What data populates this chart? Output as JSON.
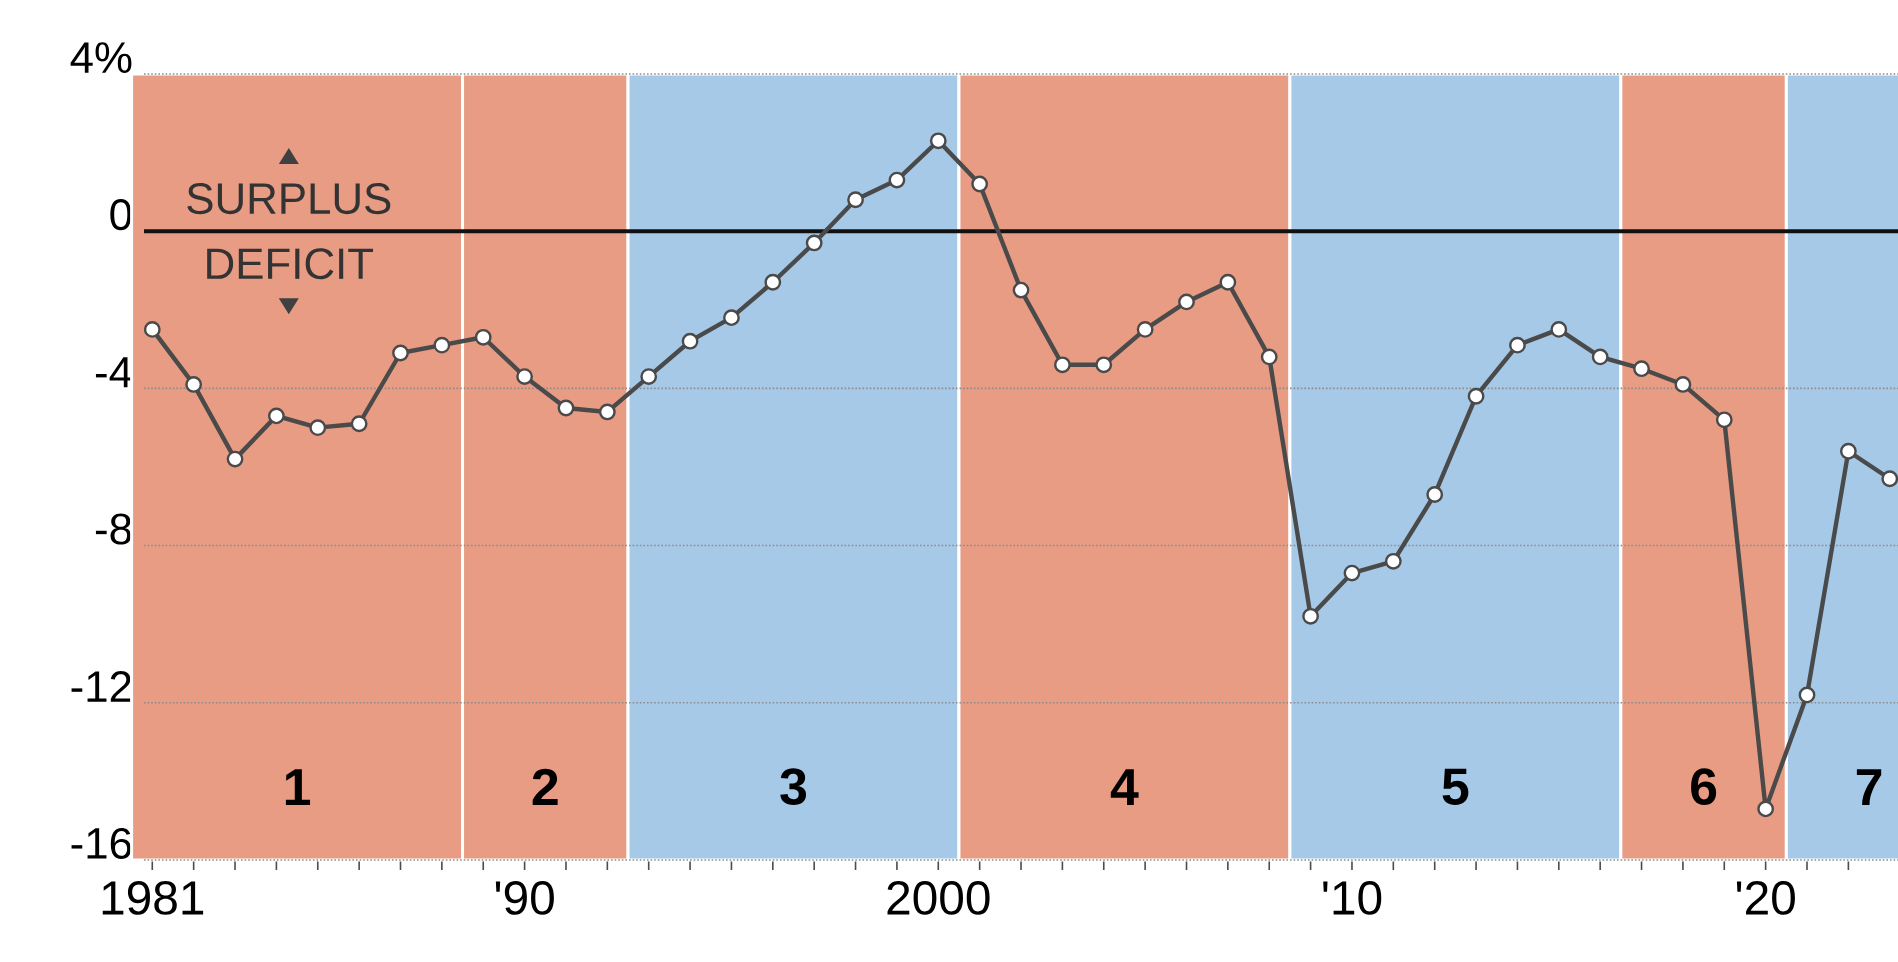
{
  "chart_data": {
    "type": "line",
    "x": [
      1981,
      1982,
      1983,
      1984,
      1985,
      1986,
      1987,
      1988,
      1989,
      1990,
      1991,
      1992,
      1993,
      1994,
      1995,
      1996,
      1997,
      1998,
      1999,
      2000,
      2001,
      2002,
      2003,
      2004,
      2005,
      2006,
      2007,
      2008,
      2009,
      2010,
      2011,
      2012,
      2013,
      2014,
      2015,
      2016,
      2017,
      2018,
      2019,
      2020,
      2021,
      2022,
      2023
    ],
    "series": [
      {
        "color": "#4a4a4a",
        "values": [
          -2.5,
          -3.9,
          -5.8,
          -4.7,
          -5.0,
          -4.9,
          -3.1,
          -2.9,
          -2.7,
          -3.7,
          -4.5,
          -4.6,
          -3.7,
          -2.8,
          -2.2,
          -1.3,
          -0.3,
          0.8,
          1.3,
          2.3,
          1.2,
          -1.5,
          -3.4,
          -3.4,
          -2.5,
          -1.8,
          -1.3,
          -3.2,
          -9.8,
          -8.7,
          -8.4,
          -6.7,
          -4.2,
          -2.9,
          -2.5,
          -3.2,
          -3.5,
          -3.9,
          -4.8,
          -14.7,
          -11.8,
          -5.6,
          -6.3
        ]
      }
    ],
    "xlim": [
      1980.8,
      2023.2
    ],
    "ylim": [
      -16,
      4
    ],
    "xticks": [
      {
        "value": 1981,
        "label": "1981"
      },
      {
        "value": 1982,
        "label": null
      },
      {
        "value": 1983,
        "label": null
      },
      {
        "value": 1984,
        "label": null
      },
      {
        "value": 1985,
        "label": null
      },
      {
        "value": 1986,
        "label": null
      },
      {
        "value": 1987,
        "label": null
      },
      {
        "value": 1988,
        "label": null
      },
      {
        "value": 1989,
        "label": null
      },
      {
        "value": 1990,
        "label": "'90"
      },
      {
        "value": 1991,
        "label": null
      },
      {
        "value": 1992,
        "label": null
      },
      {
        "value": 1993,
        "label": null
      },
      {
        "value": 1994,
        "label": null
      },
      {
        "value": 1995,
        "label": null
      },
      {
        "value": 1996,
        "label": null
      },
      {
        "value": 1997,
        "label": null
      },
      {
        "value": 1998,
        "label": null
      },
      {
        "value": 1999,
        "label": null
      },
      {
        "value": 2000,
        "label": "2000"
      },
      {
        "value": 2001,
        "label": null
      },
      {
        "value": 2002,
        "label": null
      },
      {
        "value": 2003,
        "label": null
      },
      {
        "value": 2004,
        "label": null
      },
      {
        "value": 2005,
        "label": null
      },
      {
        "value": 2006,
        "label": null
      },
      {
        "value": 2007,
        "label": null
      },
      {
        "value": 2008,
        "label": null
      },
      {
        "value": 2009,
        "label": null
      },
      {
        "value": 2010,
        "label": "'10"
      },
      {
        "value": 2011,
        "label": null
      },
      {
        "value": 2012,
        "label": null
      },
      {
        "value": 2013,
        "label": null
      },
      {
        "value": 2014,
        "label": null
      },
      {
        "value": 2015,
        "label": null
      },
      {
        "value": 2016,
        "label": null
      },
      {
        "value": 2017,
        "label": null
      },
      {
        "value": 2018,
        "label": null
      },
      {
        "value": 2019,
        "label": null
      },
      {
        "value": 2020,
        "label": "'20"
      },
      {
        "value": 2021,
        "label": null
      },
      {
        "value": 2022,
        "label": null
      }
    ],
    "yticks": [
      {
        "value": 4,
        "label": "4%"
      },
      0,
      -4,
      -8,
      -12,
      -16
    ],
    "grid": "y",
    "marker": "circle",
    "line_style": "solid",
    "ref_lines": [
      {
        "axis": "y",
        "value": 0,
        "color": "#111111"
      }
    ],
    "bands": [
      {
        "axis": "x",
        "from": 1980.5,
        "to": 1988.5,
        "label": "1",
        "color": "#e79c83"
      },
      {
        "axis": "x",
        "from": 1988.5,
        "to": 1992.5,
        "label": "2",
        "color": "#e79c83"
      },
      {
        "axis": "x",
        "from": 1992.5,
        "to": 2000.5,
        "label": "3",
        "color": "#a7c9e8"
      },
      {
        "axis": "x",
        "from": 2000.5,
        "to": 2008.5,
        "label": "4",
        "color": "#e79c83"
      },
      {
        "axis": "x",
        "from": 2008.5,
        "to": 2016.5,
        "label": "5",
        "color": "#a7c9e8"
      },
      {
        "axis": "x",
        "from": 2016.5,
        "to": 2020.5,
        "label": "6",
        "color": "#e79c83"
      },
      {
        "axis": "x",
        "from": 2020.5,
        "to": 2024.5,
        "label": "7",
        "color": "#a7c9e8"
      }
    ],
    "annotations": [
      "SURPLUS",
      "DEFICIT"
    ]
  }
}
